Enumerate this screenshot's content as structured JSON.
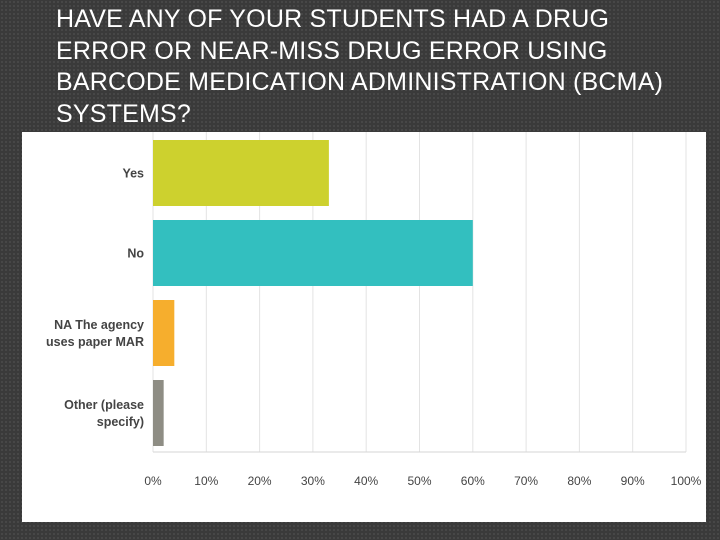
{
  "slide": {
    "title": "HAVE ANY OF YOUR STUDENTS HAD A DRUG ERROR OR NEAR-MISS DRUG ERROR USING BARCODE MEDICATION ADMINISTRATION (BCMA) SYSTEMS?"
  },
  "chart_data": {
    "type": "bar",
    "orientation": "horizontal",
    "categories": [
      [
        "Yes"
      ],
      [
        "No"
      ],
      [
        "NA The agency",
        "uses paper MAR"
      ],
      [
        "Other (please",
        "specify)"
      ]
    ],
    "values": [
      33,
      60,
      4,
      2
    ],
    "colors": [
      "#cdd12e",
      "#33bfbf",
      "#f6ae2d",
      "#8e8d84"
    ],
    "xlim": [
      0,
      100
    ],
    "xticks": [
      0,
      10,
      20,
      30,
      40,
      50,
      60,
      70,
      80,
      90,
      100
    ],
    "xtick_labels": [
      "0%",
      "10%",
      "20%",
      "30%",
      "40%",
      "50%",
      "60%",
      "70%",
      "80%",
      "90%",
      "100%"
    ],
    "grid": true,
    "legend": false
  }
}
